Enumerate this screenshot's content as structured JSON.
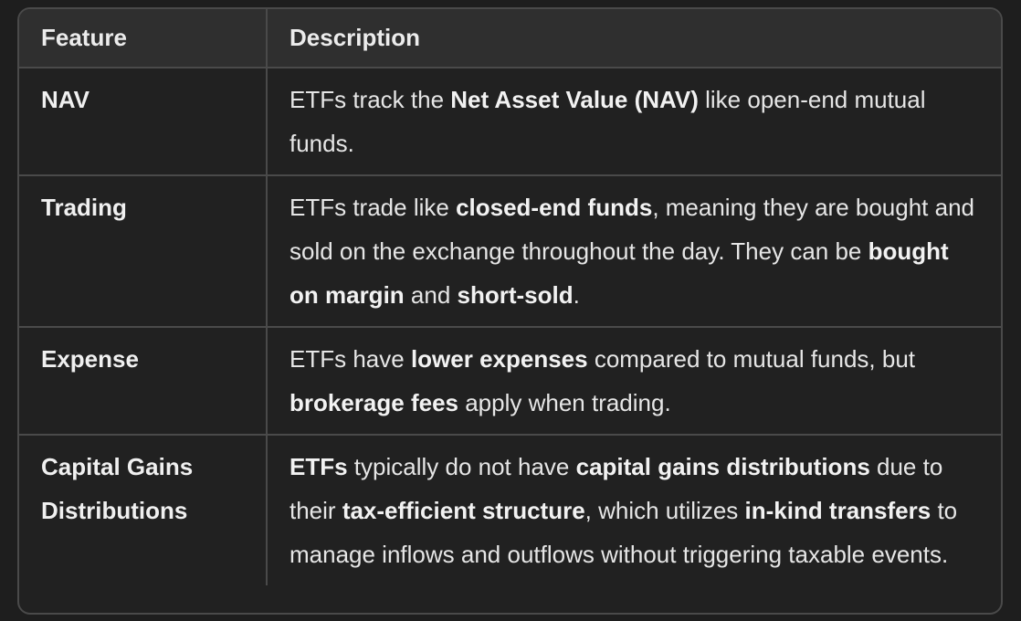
{
  "table": {
    "headers": [
      "Feature",
      "Description"
    ],
    "rows": [
      {
        "feature": "NAV",
        "description": [
          {
            "text": "ETFs track the ",
            "bold": false
          },
          {
            "text": "Net Asset Value (NAV)",
            "bold": true
          },
          {
            "text": " like open-end mutual funds.",
            "bold": false
          }
        ]
      },
      {
        "feature": "Trading",
        "description": [
          {
            "text": "ETFs trade like ",
            "bold": false
          },
          {
            "text": "closed-end funds",
            "bold": true
          },
          {
            "text": ", meaning they are bought and sold on the exchange throughout the day. They can be ",
            "bold": false
          },
          {
            "text": "bought on margin",
            "bold": true
          },
          {
            "text": " and ",
            "bold": false
          },
          {
            "text": "short-sold",
            "bold": true
          },
          {
            "text": ".",
            "bold": false
          }
        ]
      },
      {
        "feature": "Expense",
        "description": [
          {
            "text": "ETFs have ",
            "bold": false
          },
          {
            "text": "lower expenses",
            "bold": true
          },
          {
            "text": " compared to mutual funds, but ",
            "bold": false
          },
          {
            "text": "brokerage fees",
            "bold": true
          },
          {
            "text": " apply when trading.",
            "bold": false
          }
        ]
      },
      {
        "feature": "Capital Gains Distributions",
        "description": [
          {
            "text": "ETFs",
            "bold": true
          },
          {
            "text": " typically do not have ",
            "bold": false
          },
          {
            "text": "capital gains distributions",
            "bold": true
          },
          {
            "text": " due to their ",
            "bold": false
          },
          {
            "text": "tax-efficient structure",
            "bold": true
          },
          {
            "text": ", which utilizes ",
            "bold": false
          },
          {
            "text": "in-kind transfers",
            "bold": true
          },
          {
            "text": " to manage inflows and outflows without triggering taxable events.",
            "bold": false
          }
        ]
      }
    ]
  }
}
